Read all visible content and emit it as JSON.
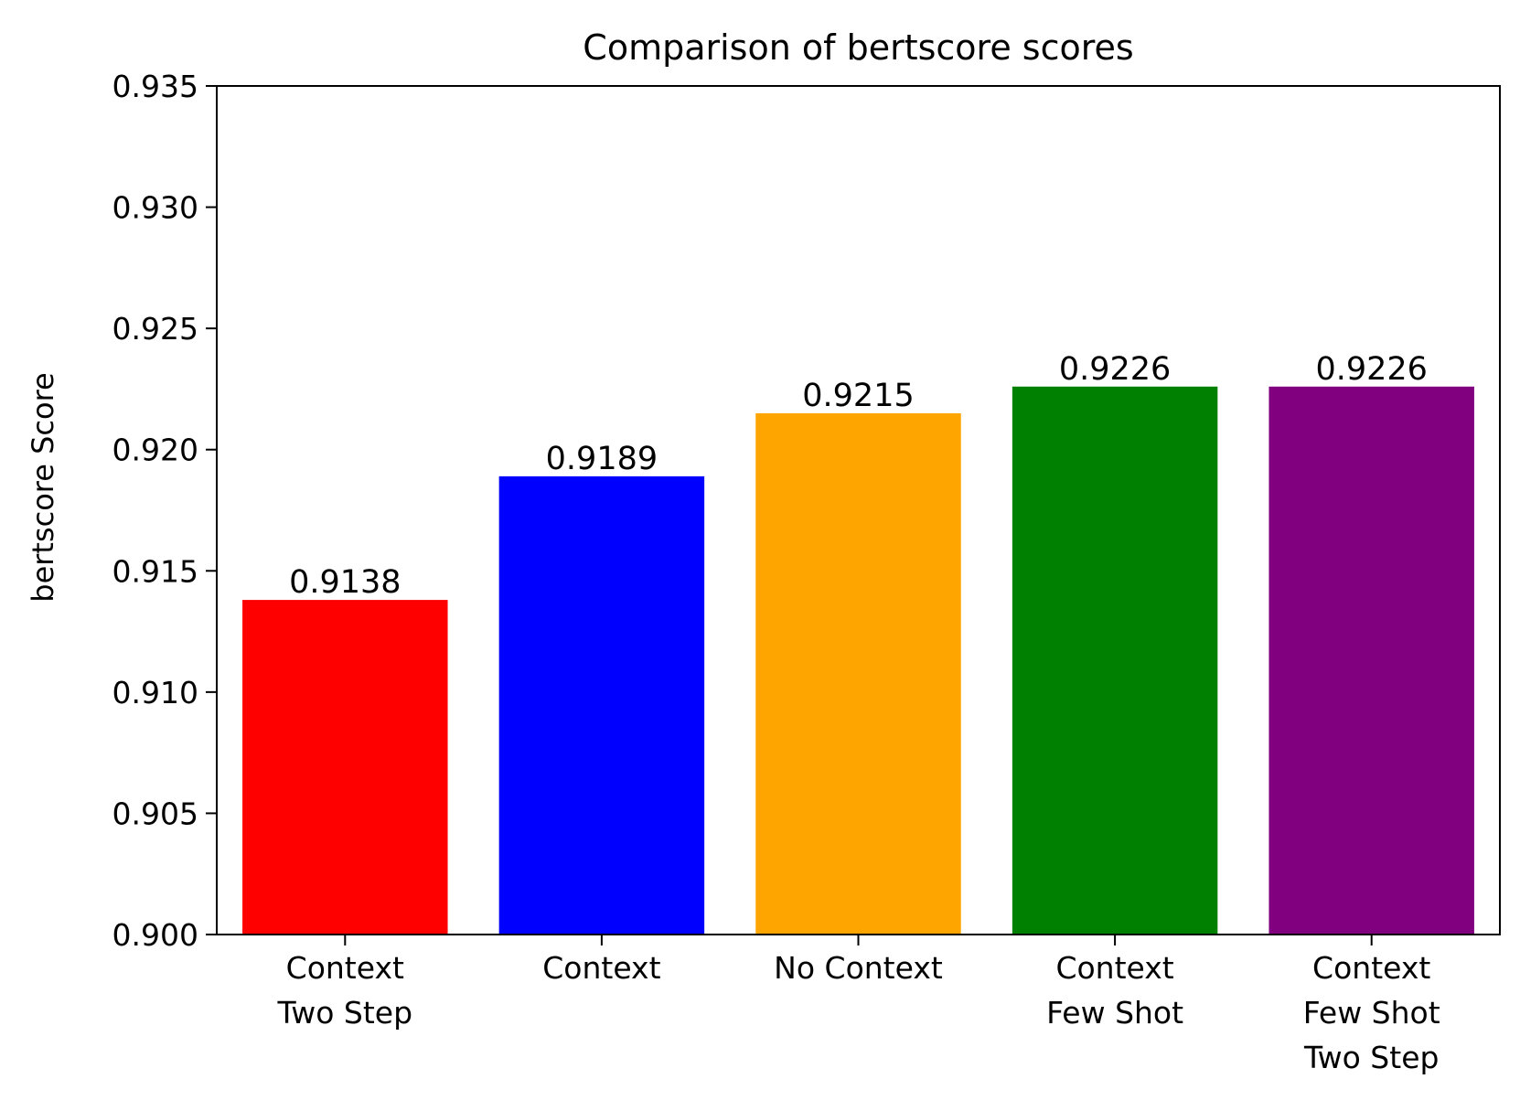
{
  "chart_data": {
    "type": "bar",
    "title": "Comparison of bertscore scores",
    "xlabel": "",
    "ylabel": "bertscore Score",
    "categories": [
      [
        "Context",
        "Two Step"
      ],
      [
        "Context"
      ],
      [
        "No Context"
      ],
      [
        "Context",
        "Few Shot"
      ],
      [
        "Context",
        "Few Shot",
        "Two Step"
      ]
    ],
    "values": [
      0.9138,
      0.9189,
      0.9215,
      0.9226,
      0.9226
    ],
    "value_labels": [
      "0.9138",
      "0.9189",
      "0.9215",
      "0.9226",
      "0.9226"
    ],
    "colors": [
      "#ff0000",
      "#0000ff",
      "#ffa500",
      "#008000",
      "#800080"
    ],
    "ylim": [
      0.9,
      0.935
    ],
    "yticks": [
      0.9,
      0.905,
      0.91,
      0.915,
      0.92,
      0.925,
      0.93,
      0.935
    ],
    "ytick_labels": [
      "0.900",
      "0.905",
      "0.910",
      "0.915",
      "0.920",
      "0.925",
      "0.930",
      "0.935"
    ],
    "grid": false,
    "legend": "none"
  }
}
